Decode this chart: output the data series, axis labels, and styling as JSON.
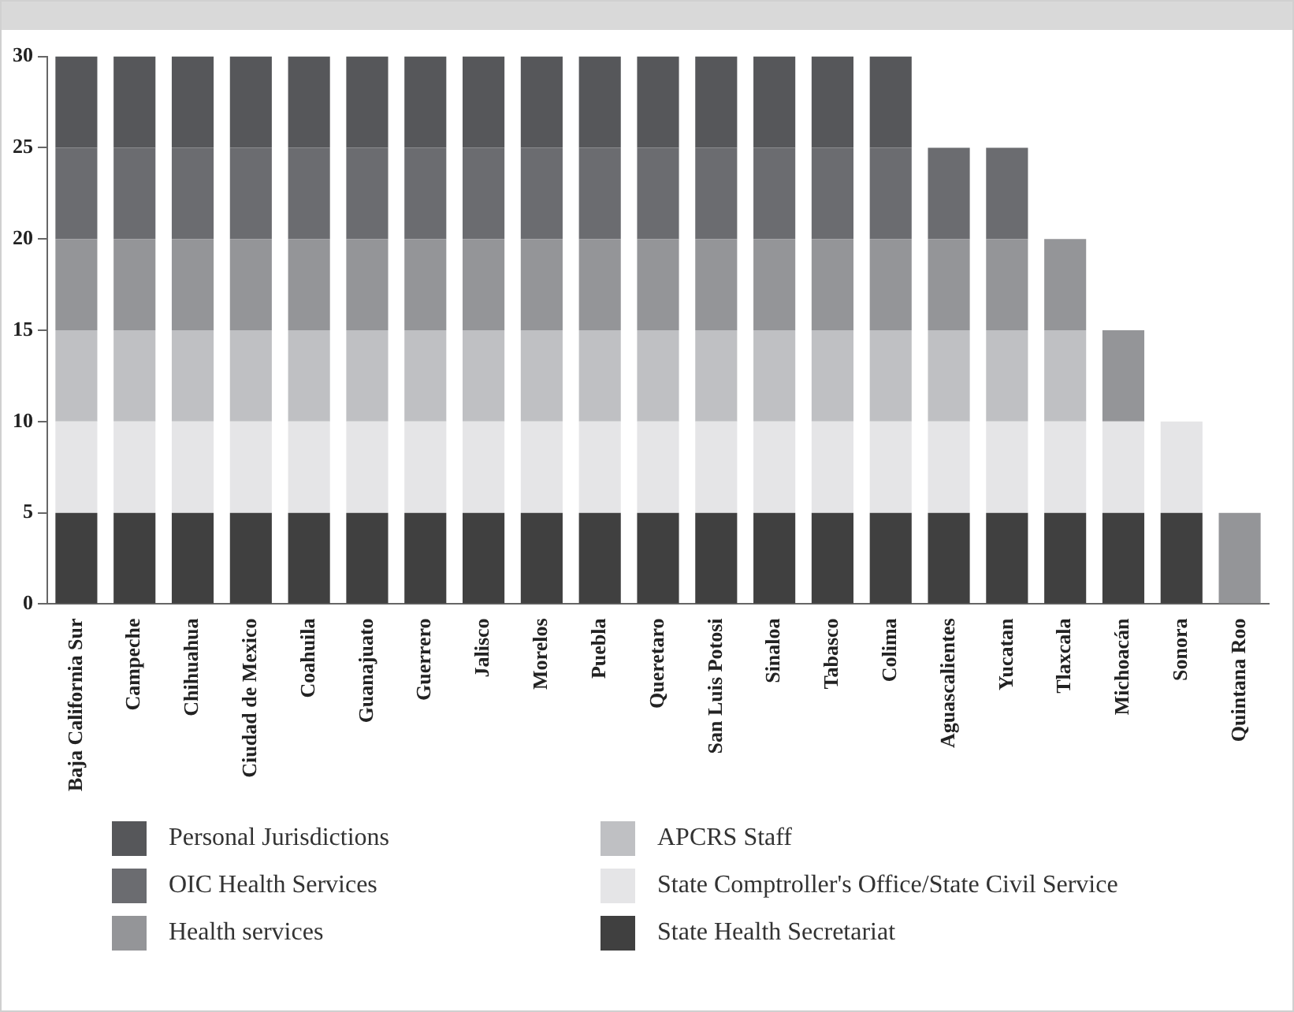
{
  "chart_data": {
    "type": "bar",
    "stacked": true,
    "legend": "bottom",
    "grid": false,
    "categories": [
      "Baja California Sur",
      "Campeche",
      "Chihuahua",
      "Ciudad de Mexico",
      "Coahuila",
      "Guanajuato",
      "Guerrero",
      "Jalisco",
      "Morelos",
      "Puebla",
      "Queretaro",
      "San Luis Potosi",
      "Sinaloa",
      "Tabasco",
      "Colima",
      "Aguascalientes",
      "Yucatan",
      "Tlaxcala",
      "Michoacán",
      "Sonora",
      "Quintana Roo"
    ],
    "ylim": [
      0,
      30
    ],
    "yticks": [
      0,
      5,
      10,
      15,
      20,
      25,
      30
    ],
    "series": [
      {
        "name": "State Health Secretariat",
        "color": "#404040",
        "values": [
          5,
          5,
          5,
          5,
          5,
          5,
          5,
          5,
          5,
          5,
          5,
          5,
          5,
          5,
          5,
          5,
          5,
          5,
          5,
          5,
          0
        ]
      },
      {
        "name": "State Comptroller's Office/State Civil Service",
        "color": "#e5e5e7",
        "values": [
          5,
          5,
          5,
          5,
          5,
          5,
          5,
          5,
          5,
          5,
          5,
          5,
          5,
          5,
          5,
          5,
          5,
          5,
          5,
          5,
          0
        ]
      },
      {
        "name": "APCRS Staff",
        "color": "#bfc0c3",
        "values": [
          5,
          5,
          5,
          5,
          5,
          5,
          5,
          5,
          5,
          5,
          5,
          5,
          5,
          5,
          5,
          5,
          5,
          5,
          0,
          0,
          0
        ]
      },
      {
        "name": "Health services",
        "color": "#949598",
        "values": [
          5,
          5,
          5,
          5,
          5,
          5,
          5,
          5,
          5,
          5,
          5,
          5,
          5,
          5,
          5,
          5,
          5,
          5,
          5,
          0,
          5
        ]
      },
      {
        "name": "OIC Health Services",
        "color": "#6b6c70",
        "values": [
          5,
          5,
          5,
          5,
          5,
          5,
          5,
          5,
          5,
          5,
          5,
          5,
          5,
          5,
          5,
          5,
          5,
          0,
          0,
          0,
          0
        ]
      },
      {
        "name": "Personal Jurisdictions",
        "color": "#56575a",
        "values": [
          5,
          5,
          5,
          5,
          5,
          5,
          5,
          5,
          5,
          5,
          5,
          5,
          5,
          5,
          5,
          0,
          0,
          0,
          0,
          0,
          0
        ]
      }
    ]
  }
}
